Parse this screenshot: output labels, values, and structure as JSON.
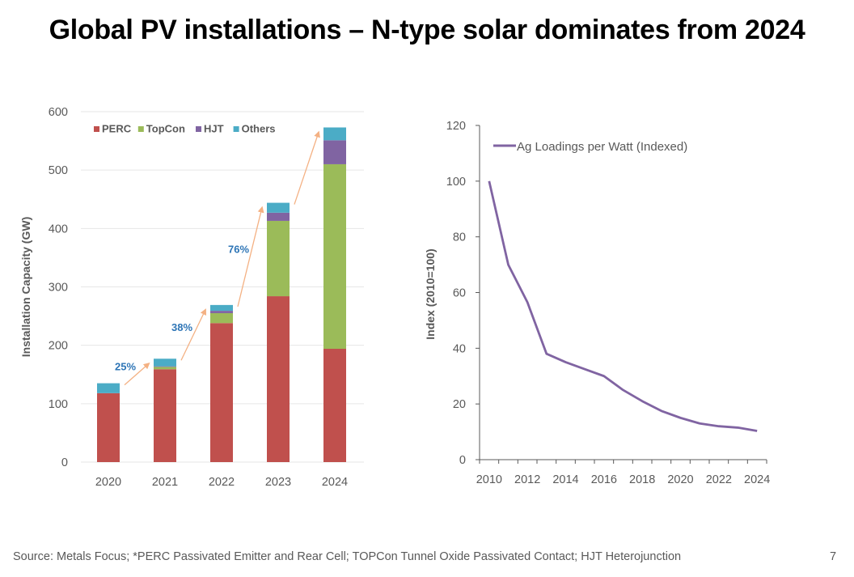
{
  "title": "Global PV installations – N-type solar dominates from 2024",
  "footer": "Source: Metals Focus; *PERC Passivated Emitter and Rear Cell; TOPCon Tunnel Oxide Passivated Contact; HJT Heterojunction",
  "page_number": "7",
  "chart_data": [
    {
      "type": "bar",
      "stacked": true,
      "title": "",
      "xlabel": "",
      "ylabel": "Installation Capacity (GW)",
      "ylim": [
        0,
        600
      ],
      "yticks": [
        0,
        100,
        200,
        300,
        400,
        500,
        600
      ],
      "grid": true,
      "legend_position": "top-left",
      "categories": [
        "2020",
        "2021",
        "2022",
        "2023",
        "2024"
      ],
      "series": [
        {
          "name": "PERC",
          "color": "#c0504d",
          "values": [
            118,
            159,
            238,
            284,
            194
          ]
        },
        {
          "name": "TopCon",
          "color": "#9bbb59",
          "values": [
            0,
            4,
            17,
            129,
            316
          ]
        },
        {
          "name": "HJT",
          "color": "#8064a2",
          "values": [
            0,
            1,
            4,
            14,
            41
          ]
        },
        {
          "name": "Others",
          "color": "#4bacc6",
          "values": [
            17,
            13,
            10,
            17,
            22
          ]
        }
      ],
      "annotations": [
        {
          "text": "25%",
          "from": "2020",
          "to": "2021"
        },
        {
          "text": "38%",
          "from": "2021",
          "to": "2022"
        },
        {
          "text": "76%",
          "from": "2022",
          "to": "2023"
        },
        {
          "text": "",
          "from": "2023",
          "to": "2024"
        }
      ],
      "annotation_colors": {
        "arrow": "#f4b183",
        "text": "#2e75b6"
      }
    },
    {
      "type": "line",
      "title": "",
      "xlabel": "",
      "ylabel": "Index (2010=100)",
      "ylim": [
        0,
        120
      ],
      "yticks": [
        0,
        20,
        40,
        60,
        80,
        100,
        120
      ],
      "grid": false,
      "legend_position": "top-left",
      "x": [
        "2010",
        "2011",
        "2012",
        "2013",
        "2014",
        "2015",
        "2016",
        "2017",
        "2018",
        "2019",
        "2020",
        "2021",
        "2022",
        "2023",
        "2024"
      ],
      "xtick_labels": [
        "2010",
        "2012",
        "2014",
        "2016",
        "2018",
        "2020",
        "2022",
        "2024"
      ],
      "series": [
        {
          "name": "Ag Loadings per Watt (Indexed)",
          "color": "#8064a2",
          "values": [
            100,
            70,
            56.5,
            38,
            35,
            32.5,
            30,
            25,
            21,
            17.5,
            15,
            13,
            12,
            11.5,
            10.3
          ]
        }
      ]
    }
  ]
}
